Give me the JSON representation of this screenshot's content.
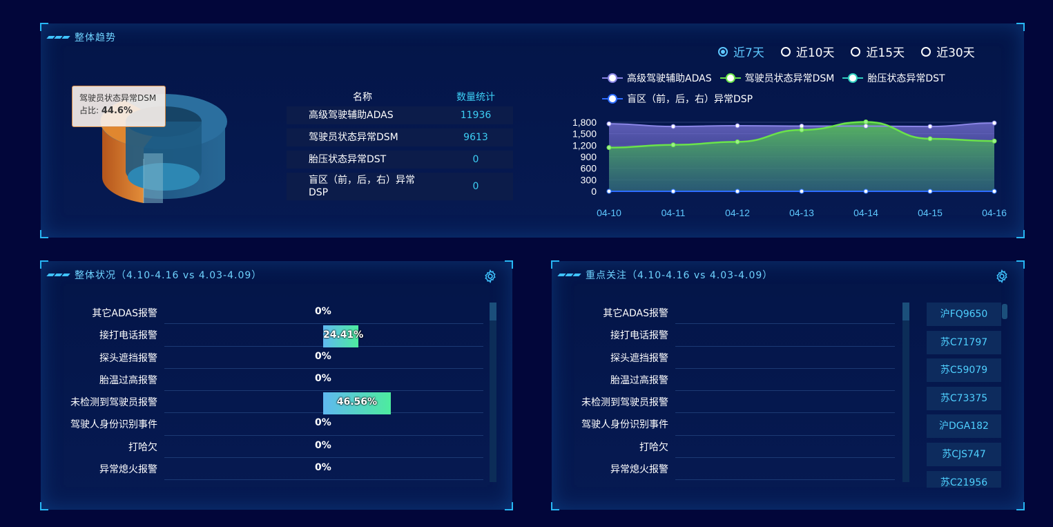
{
  "trend": {
    "title": "整体趋势",
    "tooltip": {
      "name": "驾驶员状态异常DSM",
      "ratio_label": "占比:",
      "ratio": "44.6%"
    },
    "table": {
      "header": {
        "name": "名称",
        "count": "数量统计"
      },
      "rows": [
        {
          "name": "高级驾驶辅助ADAS",
          "count": "11936"
        },
        {
          "name": "驾驶员状态异常DSM",
          "count": "9613"
        },
        {
          "name": "胎压状态异常DST",
          "count": "0"
        },
        {
          "name": "盲区（前，后，右）异常DSP",
          "count": "0"
        }
      ]
    },
    "pie": {
      "slices": [
        {
          "name": "驾驶员状态异常DSM",
          "ratio": 44.6,
          "color": "#e0872f"
        },
        {
          "name": "高级驾驶辅助ADAS",
          "ratio": 55.4,
          "color": "#1f6e9c"
        }
      ]
    },
    "ranges": [
      {
        "label": "近7天",
        "selected": true
      },
      {
        "label": "近10天",
        "selected": false
      },
      {
        "label": "近15天",
        "selected": false
      },
      {
        "label": "近30天",
        "selected": false
      }
    ],
    "legend": [
      {
        "name": "高级驾驶辅助ADAS",
        "color": "#8a85e6"
      },
      {
        "name": "驾驶员状态异常DSM",
        "color": "#6be34a"
      },
      {
        "name": "胎压状态异常DST",
        "color": "#2fd0c0"
      },
      {
        "name": "盲区（前，后，右）异常DSP",
        "color": "#2d6cff"
      }
    ]
  },
  "chart_data": {
    "type": "area",
    "categories": [
      "04-10",
      "04-11",
      "04-12",
      "04-13",
      "04-14",
      "04-15",
      "04-16"
    ],
    "yticks": [
      "0",
      "300",
      "600",
      "900",
      "1,200",
      "1,500",
      "1,800"
    ],
    "ylim": [
      0,
      1800
    ],
    "series": [
      {
        "name": "高级驾驶辅助ADAS",
        "values": [
          1760,
          1690,
          1710,
          1700,
          1700,
          1690,
          1780
        ],
        "color": "#8a85e6"
      },
      {
        "name": "驾驶员状态异常DSM",
        "values": [
          1140,
          1210,
          1290,
          1600,
          1810,
          1370,
          1310
        ],
        "color": "#6be34a"
      },
      {
        "name": "胎压状态异常DST",
        "values": [
          0,
          0,
          0,
          0,
          0,
          0,
          0
        ],
        "color": "#2fd0c0"
      },
      {
        "name": "盲区（前，后，右）异常DSP",
        "values": [
          0,
          0,
          0,
          0,
          0,
          0,
          0
        ],
        "color": "#2d6cff"
      }
    ]
  },
  "overall": {
    "title": "整体状况（4.10-4.16 vs 4.03-4.09）",
    "items": [
      {
        "label": "其它ADAS报警",
        "value": "0%",
        "ratio": 0
      },
      {
        "label": "接打电话报警",
        "value": "24.41%",
        "ratio": 24.41
      },
      {
        "label": "探头遮挡报警",
        "value": "0%",
        "ratio": 0
      },
      {
        "label": "胎温过高报警",
        "value": "0%",
        "ratio": 0
      },
      {
        "label": "未检测到驾驶员报警",
        "value": "46.56%",
        "ratio": 46.56
      },
      {
        "label": "驾驶人身份识别事件",
        "value": "0%",
        "ratio": 0
      },
      {
        "label": "打哈欠",
        "value": "0%",
        "ratio": 0
      },
      {
        "label": "异常熄火报警",
        "value": "0%",
        "ratio": 0
      }
    ]
  },
  "focus": {
    "title": "重点关注（4.10-4.16 vs 4.03-4.09）",
    "items": [
      "其它ADAS报警",
      "接打电话报警",
      "探头遮挡报警",
      "胎温过高报警",
      "未检测到驾驶员报警",
      "驾驶人身份识别事件",
      "打哈欠",
      "异常熄火报警"
    ],
    "plates": [
      "沪FQ9650",
      "苏C71797",
      "苏C59079",
      "苏C73375",
      "沪DGA182",
      "苏CJS747",
      "苏C21956"
    ]
  }
}
